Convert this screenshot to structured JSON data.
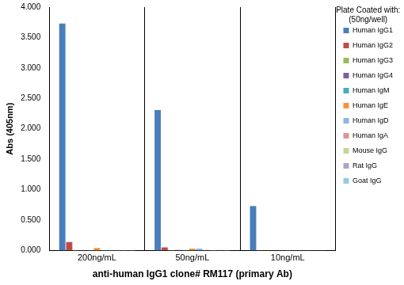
{
  "chart_data": {
    "type": "bar",
    "x_label": "anti-human IgG1 clone# RM117 (primary Ab)",
    "y_label": "Abs (405nm)",
    "categories": [
      "200ng/mL",
      "50ng/mL",
      "10ng/mL"
    ],
    "series": [
      {
        "name": "Human IgG1",
        "color": "#4a7ebb",
        "values": [
          3.73,
          2.31,
          0.73
        ]
      },
      {
        "name": "Human IgG2",
        "color": "#be4b48",
        "values": [
          0.14,
          0.05,
          0.005
        ]
      },
      {
        "name": "Human IgG3",
        "color": "#98b954",
        "values": [
          0.005,
          0.005,
          0.002
        ]
      },
      {
        "name": "Human IgG4",
        "color": "#7d60a0",
        "values": [
          0.005,
          0.01,
          0.002
        ]
      },
      {
        "name": "Human IgM",
        "color": "#46aac5",
        "values": [
          0.005,
          0.005,
          0.002
        ]
      },
      {
        "name": "Human IgE",
        "color": "#f69240",
        "values": [
          0.04,
          0.03,
          0.005
        ]
      },
      {
        "name": "Human IgD",
        "color": "#8eb4e3",
        "values": [
          0.005,
          0.03,
          0.002
        ]
      },
      {
        "name": "Human IgA",
        "color": "#d99694",
        "values": [
          0.005,
          0.01,
          0.002
        ]
      },
      {
        "name": "Mouse IgG",
        "color": "#c3d69b",
        "values": [
          0.005,
          0.005,
          0.002
        ]
      },
      {
        "name": "Rat IgG",
        "color": "#b3a2c7",
        "values": [
          0.005,
          0.01,
          0.002
        ]
      },
      {
        "name": "Goat IgG",
        "color": "#93cddd",
        "values": [
          0.005,
          0.005,
          0.002
        ]
      }
    ],
    "legend_title": [
      "Plate Coated with:",
      "(50ng/well)"
    ],
    "legend": "right",
    "ylim": [
      0,
      4
    ],
    "yticks": [
      {
        "value": 0,
        "label": "0.000"
      },
      {
        "value": 0.5,
        "label": "0.500"
      },
      {
        "value": 1,
        "label": "1.000"
      },
      {
        "value": 1.5,
        "label": "1.500"
      },
      {
        "value": 2,
        "label": "2.000"
      },
      {
        "value": 2.5,
        "label": "2.500"
      },
      {
        "value": 3,
        "label": "3.000"
      },
      {
        "value": 3.5,
        "label": "3.500"
      },
      {
        "value": 4,
        "label": "4.000"
      }
    ],
    "grid": false
  }
}
